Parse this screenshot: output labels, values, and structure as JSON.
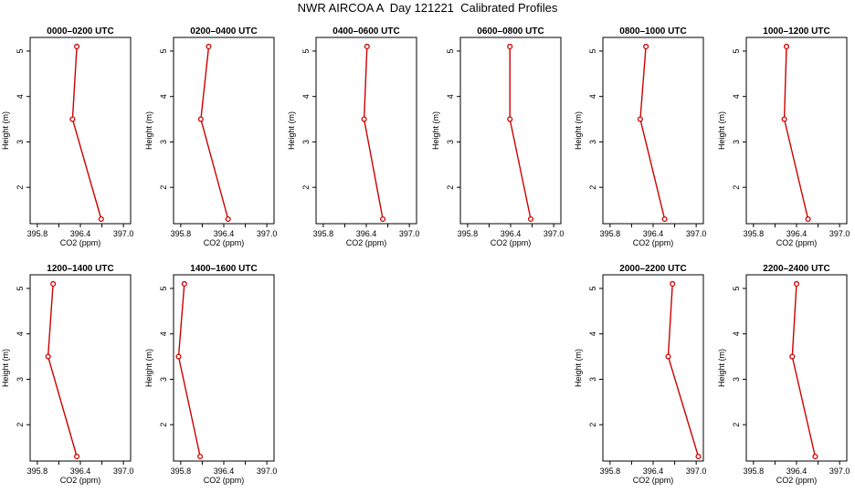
{
  "title": "NWR AIRCOA A  Day 121221  Calibrated Profiles",
  "colors": {
    "series": "#cc0000",
    "axis": "#000000"
  },
  "chart_data": [
    {
      "type": "line",
      "title": "0000–0200 UTC",
      "xlabel": "CO2 (ppm)",
      "ylabel": "Height (m)",
      "xlim": [
        395.7,
        397.1
      ],
      "ylim": [
        1.2,
        5.3
      ],
      "x_ticks": [
        "395.8",
        "396.4",
        "397.0"
      ],
      "y_ticks": [
        "2",
        "3",
        "4",
        "5"
      ],
      "x": [
        396.69,
        396.29,
        396.35
      ],
      "y": [
        1.3,
        3.5,
        5.1
      ]
    },
    {
      "type": "line",
      "title": "0200–0400 UTC",
      "xlabel": "CO2 (ppm)",
      "ylabel": "Height (m)",
      "xlim": [
        395.7,
        397.1
      ],
      "ylim": [
        1.2,
        5.3
      ],
      "x_ticks": [
        "395.8",
        "396.4",
        "397.0"
      ],
      "y_ticks": [
        "2",
        "3",
        "4",
        "5"
      ],
      "x": [
        396.46,
        396.08,
        396.19
      ],
      "y": [
        1.3,
        3.5,
        5.1
      ]
    },
    {
      "type": "line",
      "title": "0400–0600 UTC",
      "xlabel": "CO2 (ppm)",
      "ylabel": "Height (m)",
      "xlim": [
        395.7,
        397.1
      ],
      "ylim": [
        1.2,
        5.3
      ],
      "x_ticks": [
        "395.8",
        "396.4",
        "397.0"
      ],
      "y_ticks": [
        "2",
        "3",
        "4",
        "5"
      ],
      "x": [
        396.63,
        396.37,
        396.41
      ],
      "y": [
        1.3,
        3.5,
        5.1
      ]
    },
    {
      "type": "line",
      "title": "0600–0800 UTC",
      "xlabel": "CO2 (ppm)",
      "ylabel": "Height (m)",
      "xlim": [
        395.7,
        397.1
      ],
      "ylim": [
        1.2,
        5.3
      ],
      "x_ticks": [
        "395.8",
        "396.4",
        "397.0"
      ],
      "y_ticks": [
        "2",
        "3",
        "4",
        "5"
      ],
      "x": [
        396.68,
        396.39,
        396.39
      ],
      "y": [
        1.3,
        3.5,
        5.1
      ]
    },
    {
      "type": "line",
      "title": "0800–1000 UTC",
      "xlabel": "CO2 (ppm)",
      "ylabel": "Height (m)",
      "xlim": [
        395.7,
        397.1
      ],
      "ylim": [
        1.2,
        5.3
      ],
      "x_ticks": [
        "395.8",
        "396.4",
        "397.0"
      ],
      "y_ticks": [
        "2",
        "3",
        "4",
        "5"
      ],
      "x": [
        396.56,
        396.22,
        396.3
      ],
      "y": [
        1.3,
        3.5,
        5.1
      ]
    },
    {
      "type": "line",
      "title": "1000–1200 UTC",
      "xlabel": "CO2 (ppm)",
      "ylabel": "Height (m)",
      "xlim": [
        395.7,
        397.1
      ],
      "ylim": [
        1.2,
        5.3
      ],
      "x_ticks": [
        "395.8",
        "396.4",
        "397.0"
      ],
      "y_ticks": [
        "2",
        "3",
        "4",
        "5"
      ],
      "x": [
        396.56,
        396.23,
        396.26
      ],
      "y": [
        1.3,
        3.5,
        5.1
      ]
    },
    {
      "type": "line",
      "title": "1200–1400 UTC",
      "xlabel": "CO2 (ppm)",
      "ylabel": "Height (m)",
      "xlim": [
        395.7,
        397.1
      ],
      "ylim": [
        1.2,
        5.3
      ],
      "x_ticks": [
        "395.8",
        "396.4",
        "397.0"
      ],
      "y_ticks": [
        "2",
        "3",
        "4",
        "5"
      ],
      "x": [
        396.35,
        395.95,
        396.02
      ],
      "y": [
        1.3,
        3.5,
        5.1
      ]
    },
    {
      "type": "line",
      "title": "1400–1600 UTC",
      "xlabel": "CO2 (ppm)",
      "ylabel": "Height (m)",
      "xlim": [
        395.7,
        397.1
      ],
      "ylim": [
        1.2,
        5.3
      ],
      "x_ticks": [
        "395.8",
        "396.4",
        "397.0"
      ],
      "y_ticks": [
        "2",
        "3",
        "4",
        "5"
      ],
      "x": [
        396.07,
        395.77,
        395.85
      ],
      "y": [
        1.3,
        3.5,
        5.1
      ]
    },
    {
      "type": "line",
      "title": "2000–2200 UTC",
      "xlabel": "CO2 (ppm)",
      "ylabel": "Height (m)",
      "xlim": [
        395.7,
        397.1
      ],
      "ylim": [
        1.2,
        5.3
      ],
      "x_ticks": [
        "395.8",
        "396.4",
        "397.0"
      ],
      "y_ticks": [
        "2",
        "3",
        "4",
        "5"
      ],
      "x": [
        397.03,
        396.61,
        396.67
      ],
      "y": [
        1.3,
        3.5,
        5.1
      ]
    },
    {
      "type": "line",
      "title": "2200–2400 UTC",
      "xlabel": "CO2 (ppm)",
      "ylabel": "Height (m)",
      "xlim": [
        395.7,
        397.1
      ],
      "ylim": [
        1.2,
        5.3
      ],
      "x_ticks": [
        "395.8",
        "396.4",
        "397.0"
      ],
      "y_ticks": [
        "2",
        "3",
        "4",
        "5"
      ],
      "x": [
        396.66,
        396.34,
        396.4
      ],
      "y": [
        1.3,
        3.5,
        5.1
      ]
    }
  ]
}
